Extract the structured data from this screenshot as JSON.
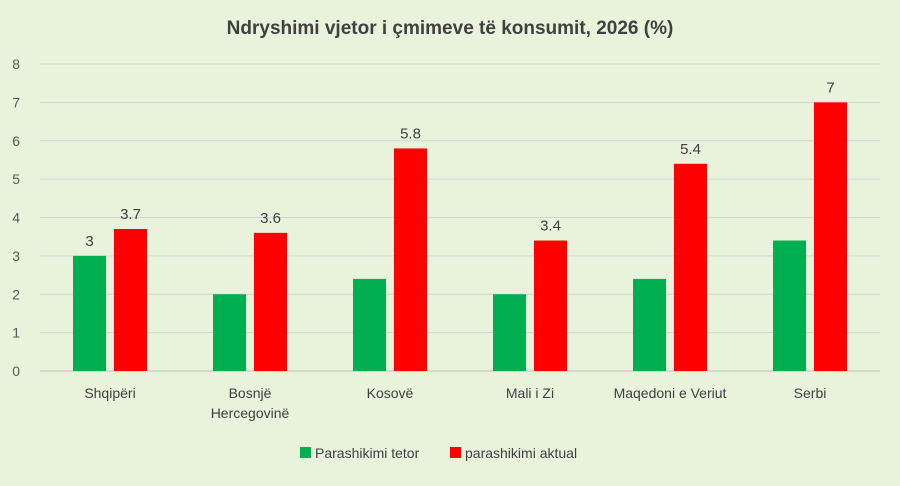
{
  "chart_data": {
    "type": "bar",
    "title": "Ndryshimi vjetor i çmimeve të konsumit, 2026 (%)",
    "xlabel": "",
    "ylabel": "",
    "ylim": [
      0,
      8
    ],
    "yticks": [
      0,
      1,
      2,
      3,
      4,
      5,
      6,
      7,
      8
    ],
    "grid": true,
    "legend_position": "bottom",
    "categories": [
      [
        "Shqipëri"
      ],
      [
        "Bosnjë",
        "Hercegovinë"
      ],
      [
        "Kosovë"
      ],
      [
        "Mali i Zi"
      ],
      [
        "Maqedoni e Veriut"
      ],
      [
        "Serbi"
      ]
    ],
    "series": [
      {
        "name": "Parashikimi tetor",
        "color": "#00b050",
        "values": [
          3,
          2,
          2.4,
          2,
          2.4,
          3.4
        ],
        "data_labels": [
          "3",
          "",
          "",
          "",
          "",
          ""
        ]
      },
      {
        "name": "parashikimi aktual",
        "color": "#ff0000",
        "values": [
          3.7,
          3.6,
          5.8,
          3.4,
          5.4,
          7
        ],
        "data_labels": [
          "3.7",
          "3.6",
          "5.8",
          "3.4",
          "5.4",
          "7"
        ]
      }
    ]
  }
}
